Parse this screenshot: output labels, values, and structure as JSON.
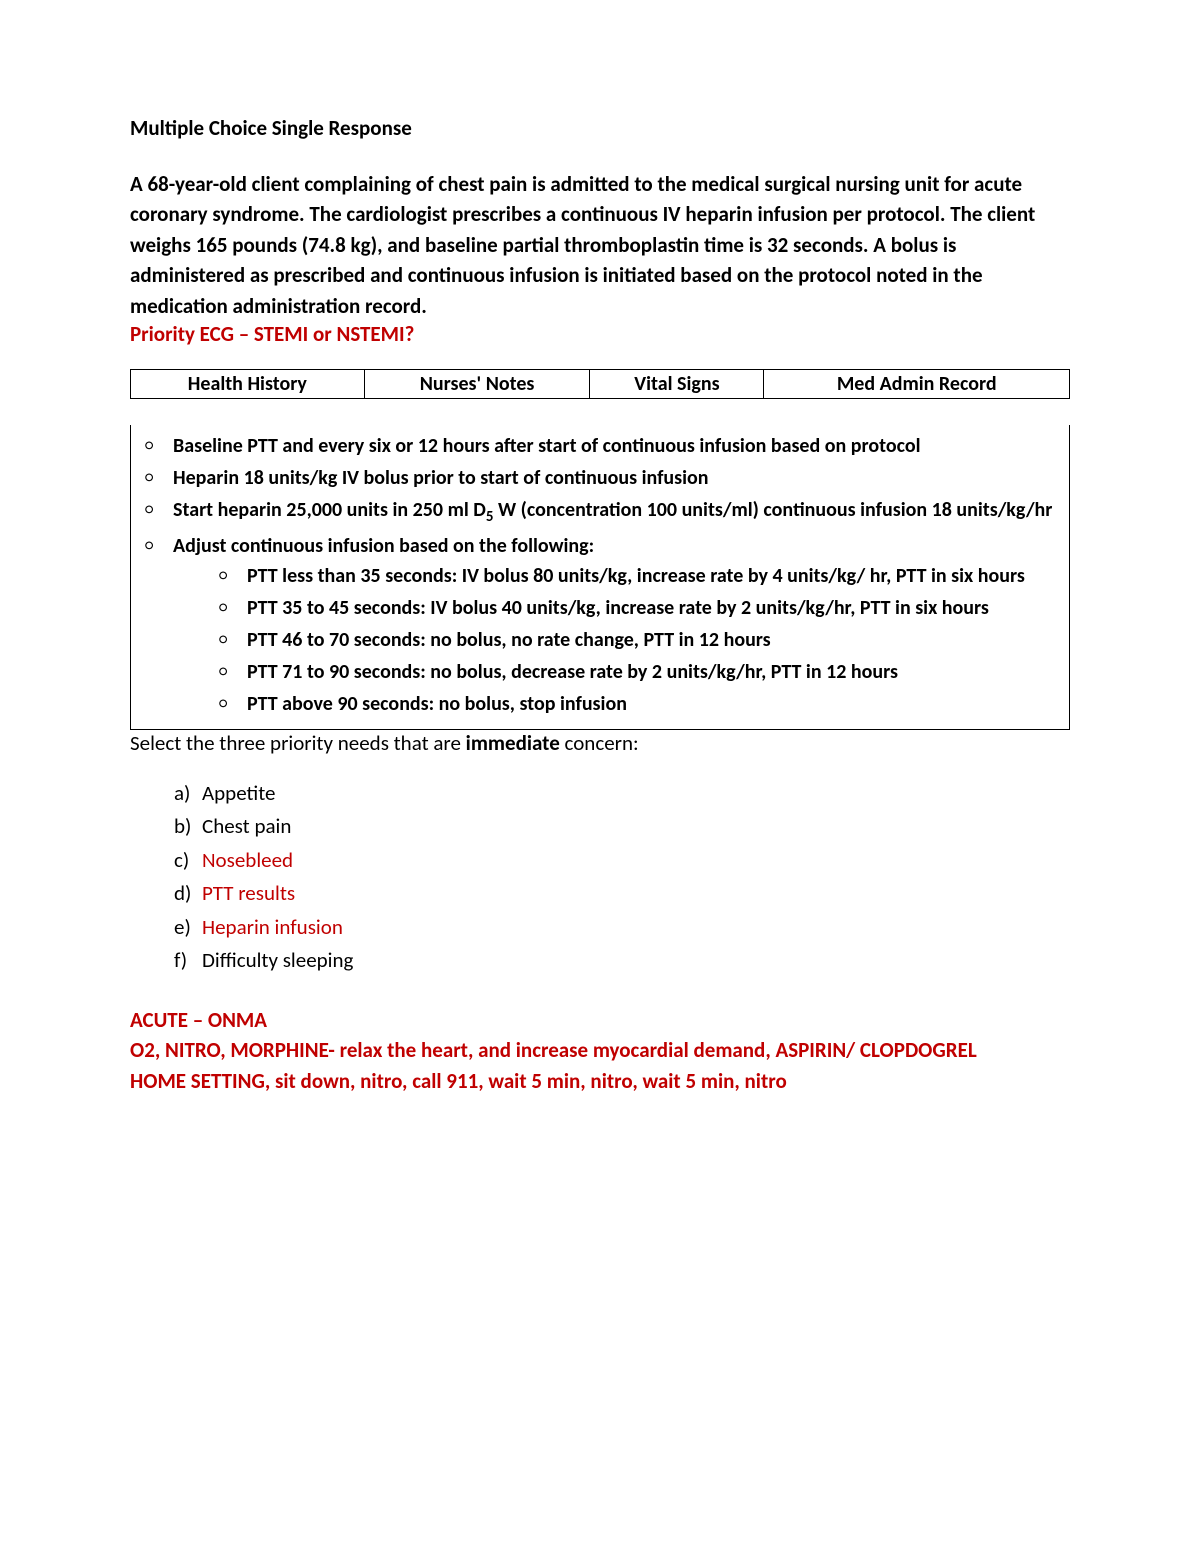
{
  "heading": "Multiple Choice Single Response",
  "scenario": "A 68-year-old client complaining of chest pain is admitted to the medical surgical nursing unit for acute coronary syndrome. The cardiologist prescribes a continuous IV heparin infusion per protocol. The client weighs 165 pounds (74.8 kg), and baseline partial thromboplastin time is 32 seconds. A bolus is administered as prescribed and continuous infusion is initiated based on the protocol noted in the medication administration record.",
  "priority_line": "Priority ECG – STEMI or NSTEMI?",
  "tabs": {
    "health_history": "Health History",
    "nurses_notes": "Nurses' Notes",
    "vital_signs": "Vital Signs",
    "med_admin": "Med Admin Record"
  },
  "protocol": {
    "p1": "Baseline PTT and every six or 12 hours after start of continuous infusion based on protocol",
    "p2": "Heparin 18 units/kg IV bolus prior to start of continuous infusion",
    "p3_prefix": "Start heparin 25,000 units in 250 ml D",
    "p3_sub": "5",
    "p3_suffix": " W (concentration 100 units/ml) continuous infusion 18 units/kg/hr",
    "p4": "Adjust continuous infusion based on the following:",
    "sub": {
      "s1": "PTT less than 35 seconds: IV bolus 80 units/kg, increase rate by 4 units/kg/ hr, PTT in six hours",
      "s2": "PTT 35 to 45 seconds: IV bolus 40 units/kg, increase rate by 2 units/kg/hr, PTT in six hours",
      "s3": "PTT 46 to 70 seconds: no bolus, no rate change, PTT in 12 hours",
      "s4": "PTT 71 to 90 seconds: no bolus, decrease rate by 2 units/kg/hr, PTT in 12 hours",
      "s5": "PTT above 90 seconds: no bolus, stop infusion"
    }
  },
  "question": {
    "pre": "Select the three priority needs that are ",
    "bold": "immediate",
    "post": " concern:"
  },
  "answers": {
    "a": {
      "letter": "a)",
      "text": "Appetite",
      "color": "#000000"
    },
    "b": {
      "letter": "b)",
      "text": "Chest pain",
      "color": "#000000"
    },
    "c": {
      "letter": "c)",
      "text": "Nosebleed",
      "color": "#c00000"
    },
    "d": {
      "letter": "d)",
      "text": "PTT results",
      "color": "#c00000"
    },
    "e": {
      "letter": "e)",
      "text": "Heparin infusion",
      "color": "#c00000"
    },
    "f": {
      "letter": "f)",
      "text": "Difficulty sleeping",
      "color": "#000000"
    }
  },
  "notes": {
    "n1": "ACUTE – ONMA",
    "n2": "O2, NITRO, MORPHINE- relax the heart, and increase myocardial demand, ASPIRIN/ CLOPDOGREL",
    "n3": "HOME SETTING, sit down, nitro, call 911, wait 5 min, nitro, wait 5 min, nitro"
  },
  "colors": {
    "text": "#000000",
    "red": "#c00000",
    "background": "#ffffff",
    "border": "#000000"
  }
}
